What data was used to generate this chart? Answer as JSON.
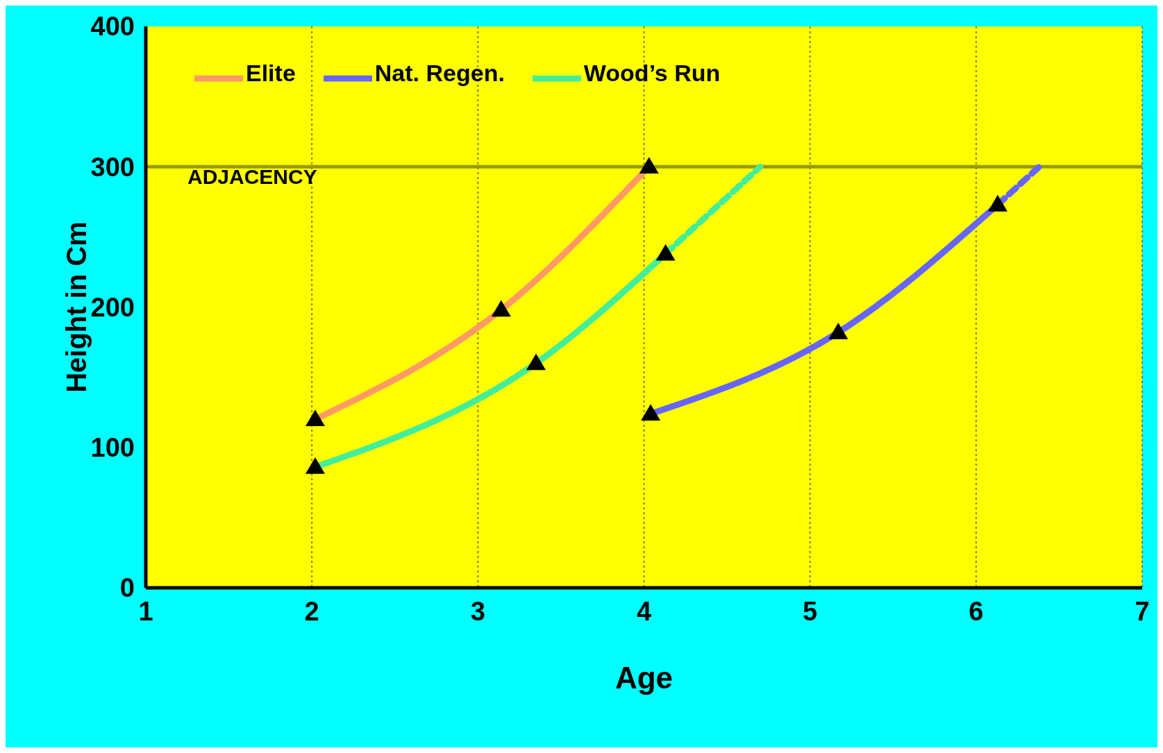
{
  "chart_data": {
    "type": "line",
    "xlabel": "Age",
    "ylabel": "Height in Cm",
    "xlim": [
      1,
      7
    ],
    "xticks": [
      1,
      2,
      3,
      4,
      5,
      6,
      7
    ],
    "ylim": [
      0,
      400
    ],
    "yticks": [
      0,
      100,
      200,
      300,
      400
    ],
    "grid": "x",
    "legend": "top left",
    "marker": "triangle",
    "line_style": "solid",
    "ref_lines": [
      {
        "axis": "y",
        "value": 300,
        "label": "ADJACENCY",
        "color": "#999900"
      }
    ],
    "series": [
      {
        "name": "Elite",
        "color": "#ff9966",
        "x": [
          2.02,
          3.14,
          4.03
        ],
        "values": [
          120,
          198,
          300
        ]
      },
      {
        "name": "Wood’s Run",
        "color": "#44ee99",
        "x": [
          2.02,
          3.35,
          4.13
        ],
        "values": [
          86,
          160,
          238
        ]
      },
      {
        "color": "#44ee99",
        "x": [
          4.13,
          4.7
        ],
        "values": [
          238,
          300
        ],
        "line_style": "dashed",
        "marker": "none"
      },
      {
        "name": "Nat. Regen.",
        "color": "#6666ff",
        "x": [
          4.04,
          5.17,
          6.13
        ],
        "values": [
          124,
          182,
          273
        ]
      },
      {
        "color": "#6666ff",
        "x": [
          6.13,
          6.38
        ],
        "values": [
          273,
          300
        ],
        "line_style": "dashed",
        "marker": "none"
      }
    ]
  }
}
